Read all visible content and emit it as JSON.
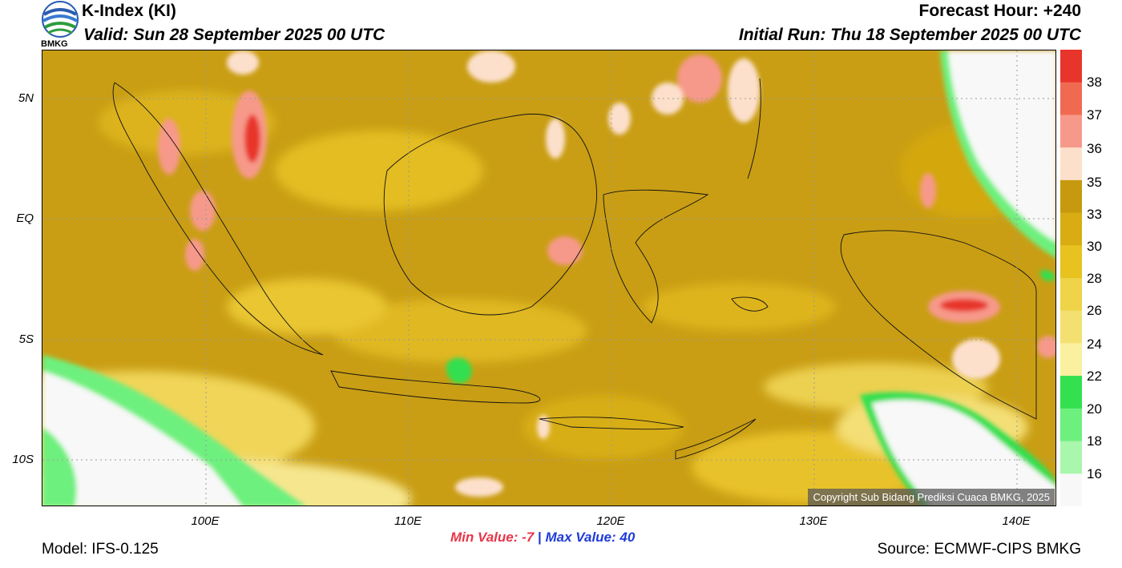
{
  "header": {
    "title": "K-Index (KI)",
    "valid": "Valid: Sun 28 September 2025 00 UTC",
    "forecast_hour": "Forecast Hour: +240",
    "initial_run": "Initial Run: Thu 18 September 2025 00 UTC"
  },
  "logo": {
    "text": "BMKG",
    "icon": "bmkg-logo-icon"
  },
  "map": {
    "lat_labels": [
      "5N",
      "EQ",
      "5S",
      "10S"
    ],
    "lon_labels": [
      "100E",
      "110E",
      "120E",
      "130E",
      "140E"
    ],
    "copyright": "Copyright Sub Bidang Prediksi Cuaca BMKG, 2025",
    "background_color": "#c9a21a"
  },
  "colorbar": {
    "labels": [
      "38",
      "37",
      "36",
      "35",
      "33",
      "30",
      "28",
      "26",
      "24",
      "22",
      "20",
      "18",
      "16"
    ],
    "colors": [
      "#e8352b",
      "#f06a52",
      "#f7998a",
      "#fde0cc",
      "#c7990e",
      "#d9ac14",
      "#e8c21f",
      "#efd348",
      "#f4e070",
      "#faf09f",
      "#33e050",
      "#6ef07e",
      "#a9f6ad",
      "#f8f8f8"
    ]
  },
  "stats": {
    "min_label": "Min Value:",
    "min_value": "-7",
    "separator": "|",
    "max_label": "Max Value:",
    "max_value": "40"
  },
  "footer": {
    "model": "Model: IFS-0.125",
    "source": "Source: ECMWF-CIPS BMKG"
  }
}
